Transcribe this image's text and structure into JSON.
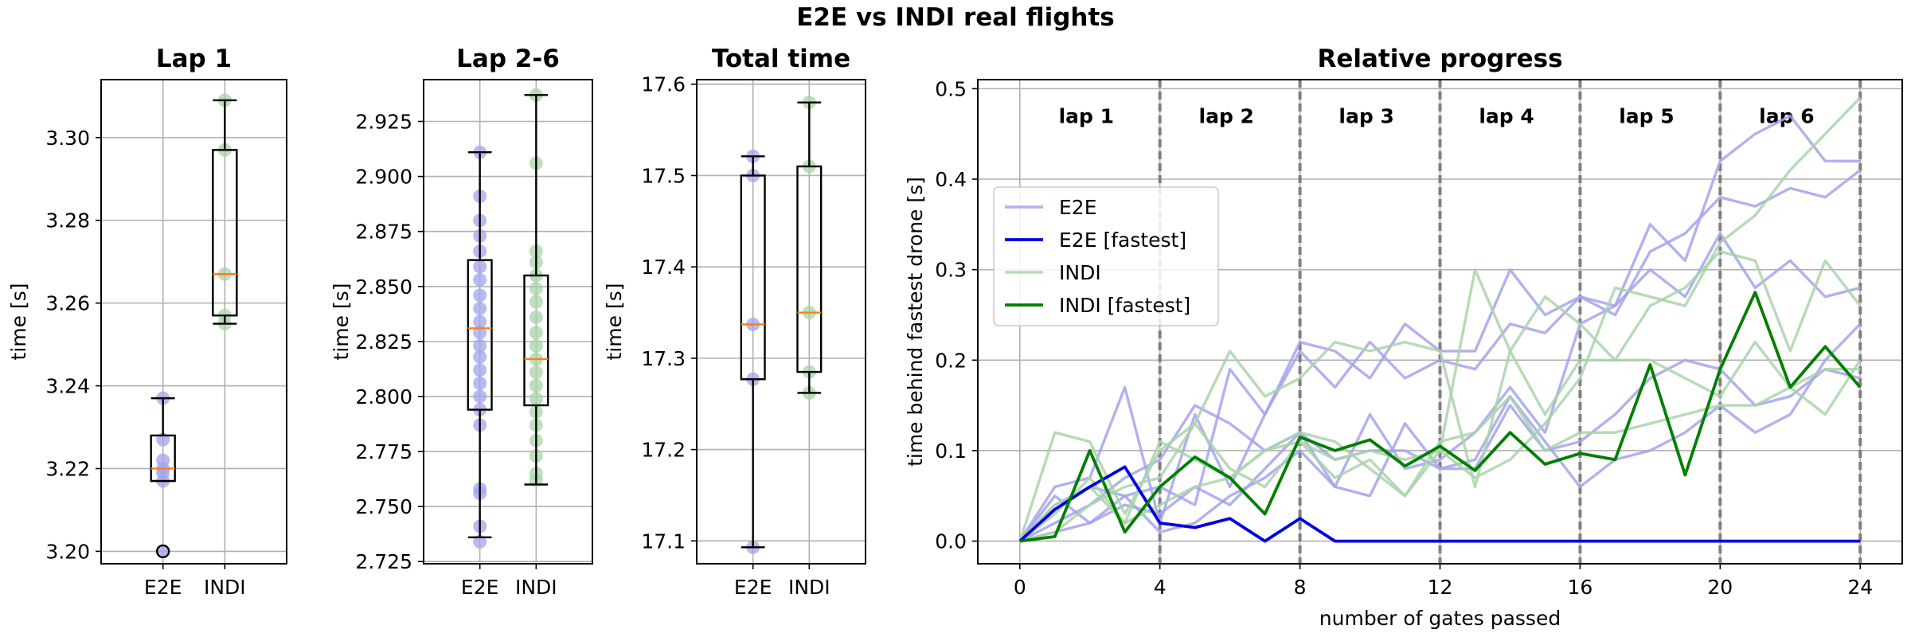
{
  "figure_title": "E2E vs INDI real flights",
  "colors": {
    "e2e_light": "#a3a3ee",
    "e2e_dark": "#0000dd",
    "indi_light": "#a9d3a9",
    "indi_dark": "#007f00",
    "median": "#ff7f0e",
    "grid": "#b0b0b0",
    "lap_line": "#808080"
  },
  "chart_data": [
    {
      "type": "box",
      "title": "Lap 1",
      "ylabel": "time [s]",
      "xlabel": "",
      "categories": [
        "E2E",
        "INDI"
      ],
      "ylim": [
        3.197,
        3.314
      ],
      "yticks": [
        3.2,
        3.22,
        3.24,
        3.26,
        3.28,
        3.3
      ],
      "tick_decimals": 2,
      "boxes": [
        {
          "name": "E2E",
          "whislo": 3.217,
          "q1": 3.217,
          "med": 3.22,
          "q3": 3.228,
          "whishi": 3.237,
          "fliers": [
            3.2
          ],
          "points": [
            3.237,
            3.227,
            3.222,
            3.22,
            3.219,
            3.217,
            3.2
          ]
        },
        {
          "name": "INDI",
          "whislo": 3.255,
          "q1": 3.257,
          "med": 3.267,
          "q3": 3.297,
          "whishi": 3.309,
          "fliers": [],
          "points": [
            3.309,
            3.297,
            3.267,
            3.257,
            3.255
          ]
        }
      ]
    },
    {
      "type": "box",
      "title": "Lap 2-6",
      "ylabel": "time [s]",
      "xlabel": "",
      "categories": [
        "E2E",
        "INDI"
      ],
      "ylim": [
        2.724,
        2.944
      ],
      "yticks": [
        2.725,
        2.75,
        2.775,
        2.8,
        2.825,
        2.85,
        2.875,
        2.9,
        2.925
      ],
      "tick_decimals": 3,
      "boxes": [
        {
          "name": "E2E",
          "whislo": 2.736,
          "q1": 2.794,
          "med": 2.831,
          "q3": 2.862,
          "whishi": 2.911,
          "fliers": [],
          "points": [
            2.911,
            2.891,
            2.88,
            2.873,
            2.866,
            2.859,
            2.853,
            2.846,
            2.84,
            2.834,
            2.829,
            2.823,
            2.818,
            2.812,
            2.806,
            2.8,
            2.794,
            2.787,
            2.758,
            2.756,
            2.741,
            2.734
          ]
        },
        {
          "name": "INDI",
          "whislo": 2.76,
          "q1": 2.796,
          "med": 2.817,
          "q3": 2.855,
          "whishi": 2.937,
          "fliers": [],
          "points": [
            2.937,
            2.906,
            2.866,
            2.861,
            2.855,
            2.849,
            2.843,
            2.836,
            2.829,
            2.823,
            2.817,
            2.811,
            2.805,
            2.799,
            2.793,
            2.787,
            2.78,
            2.773,
            2.765,
            2.762
          ]
        }
      ]
    },
    {
      "type": "box",
      "title": "Total time",
      "ylabel": "time [s]",
      "xlabel": "",
      "categories": [
        "E2E",
        "INDI"
      ],
      "ylim": [
        17.075,
        17.605
      ],
      "yticks": [
        17.1,
        17.2,
        17.3,
        17.4,
        17.5,
        17.6
      ],
      "tick_decimals": 1,
      "boxes": [
        {
          "name": "E2E",
          "whislo": 17.093,
          "q1": 17.277,
          "med": 17.337,
          "q3": 17.5,
          "whishi": 17.521,
          "fliers": [],
          "points": [
            17.521,
            17.5,
            17.337,
            17.277,
            17.093
          ]
        },
        {
          "name": "INDI",
          "whislo": 17.262,
          "q1": 17.285,
          "med": 17.35,
          "q3": 17.51,
          "whishi": 17.58,
          "fliers": [],
          "points": [
            17.58,
            17.51,
            17.35,
            17.285,
            17.262
          ]
        }
      ]
    },
    {
      "type": "line",
      "title": "Relative progress",
      "xlabel": "number of gates passed",
      "ylabel": "time behind fastest drone [s]",
      "xlim": [
        -1.2,
        25.2
      ],
      "ylim": [
        -0.025,
        0.51
      ],
      "xticks": [
        0,
        4,
        8,
        12,
        16,
        20,
        24
      ],
      "yticks": [
        0.0,
        0.1,
        0.2,
        0.3,
        0.4,
        0.5
      ],
      "tick_decimals": 1,
      "lap_boundaries": [
        4,
        8,
        12,
        16,
        20,
        24
      ],
      "lap_labels": [
        {
          "text": "lap 1",
          "x": 1.9
        },
        {
          "text": "lap 2",
          "x": 5.9
        },
        {
          "text": "lap 3",
          "x": 9.9
        },
        {
          "text": "lap 4",
          "x": 13.9
        },
        {
          "text": "lap 5",
          "x": 17.9
        },
        {
          "text": "lap 6",
          "x": 21.9
        }
      ],
      "lap_label_y": 0.47,
      "legend": {
        "position": "center-left",
        "entries": [
          {
            "label": "E2E",
            "style": "e2e_light"
          },
          {
            "label": "E2E [fastest]",
            "style": "e2e_dark"
          },
          {
            "label": "INDI",
            "style": "indi_light"
          },
          {
            "label": "INDI [fastest]",
            "style": "indi_dark"
          }
        ]
      },
      "series": [
        {
          "name": "E2E",
          "style": "e2e_light",
          "values": [
            0,
            0.06,
            0.07,
            0.17,
            0.02,
            0.14,
            0.06,
            0.14,
            0.22,
            0.21,
            0.18,
            0.24,
            0.21,
            0.21,
            0.3,
            0.25,
            0.27,
            0.26,
            0.35,
            0.31,
            0.42,
            0.45,
            0.47,
            0.42,
            0.42
          ]
        },
        {
          "name": "E2E",
          "style": "e2e_light",
          "values": [
            0,
            0.04,
            0.06,
            0.05,
            0.06,
            0.04,
            0.19,
            0.14,
            0.21,
            0.17,
            0.22,
            0.18,
            0.2,
            0.19,
            0.24,
            0.23,
            0.27,
            0.25,
            0.32,
            0.34,
            0.38,
            0.37,
            0.39,
            0.38,
            0.41
          ]
        },
        {
          "name": "E2E",
          "style": "e2e_light",
          "values": [
            0,
            0.02,
            0.04,
            0.07,
            0.09,
            0.15,
            0.13,
            0.1,
            0.12,
            0.06,
            0.14,
            0.08,
            0.09,
            0.12,
            0.17,
            0.12,
            0.24,
            0.26,
            0.3,
            0.27,
            0.34,
            0.28,
            0.31,
            0.27,
            0.28
          ]
        },
        {
          "name": "E2E",
          "style": "e2e_light",
          "values": [
            0,
            0.01,
            0.02,
            0.04,
            0.03,
            0.06,
            0.04,
            0.08,
            0.12,
            0.09,
            0.1,
            0.1,
            0.08,
            0.09,
            0.16,
            0.11,
            0.06,
            0.09,
            0.1,
            0.12,
            0.15,
            0.12,
            0.14,
            0.2,
            0.24
          ]
        },
        {
          "name": "E2E",
          "style": "e2e_light",
          "values": [
            0,
            0.05,
            0.02,
            0.05,
            0.01,
            0.02,
            0.05,
            0.07,
            0.1,
            0.06,
            0.05,
            0.13,
            0.08,
            0.08,
            0.15,
            0.1,
            0.11,
            0.14,
            0.18,
            0.2,
            0.19,
            0.15,
            0.16,
            0.19,
            0.18
          ]
        },
        {
          "name": "INDI",
          "style": "indi_light",
          "values": [
            0,
            0.12,
            0.11,
            0.03,
            0.1,
            0.13,
            0.08,
            0.06,
            0.11,
            0.09,
            0.1,
            0.09,
            0.1,
            0.07,
            0.09,
            0.13,
            0.18,
            0.28,
            0.27,
            0.26,
            0.33,
            0.36,
            0.41,
            0.45,
            0.49
          ]
        },
        {
          "name": "INDI",
          "style": "indi_light",
          "values": [
            0,
            0.04,
            0.06,
            0.02,
            0.11,
            0.09,
            0.07,
            0.1,
            0.11,
            0.07,
            0.09,
            0.05,
            0.1,
            0.3,
            0.21,
            0.27,
            0.24,
            0.2,
            0.26,
            0.28,
            0.32,
            0.31,
            0.21,
            0.31,
            0.26
          ]
        },
        {
          "name": "INDI",
          "style": "indi_light",
          "values": [
            0,
            0.01,
            0.04,
            0.06,
            0.07,
            0.13,
            0.21,
            0.16,
            0.18,
            0.22,
            0.21,
            0.22,
            0.21,
            0.06,
            0.21,
            0.14,
            0.2,
            0.2,
            0.2,
            0.18,
            0.16,
            0.22,
            0.17,
            0.14,
            0.2
          ]
        },
        {
          "name": "INDI",
          "style": "indi_light",
          "values": [
            0,
            0.03,
            0.07,
            0.02,
            0.04,
            0.06,
            0.07,
            0.1,
            0.12,
            0.11,
            0.08,
            0.05,
            0.11,
            0.12,
            0.16,
            0.1,
            0.12,
            0.12,
            0.13,
            0.14,
            0.15,
            0.15,
            0.17,
            0.19,
            0.19
          ]
        },
        {
          "name": "E2E [fastest]",
          "style": "e2e_dark",
          "values": [
            0,
            0.035,
            0.06,
            0.082,
            0.02,
            0.015,
            0.025,
            0.0,
            0.025,
            0,
            0,
            0,
            0,
            0,
            0,
            0,
            0,
            0,
            0,
            0,
            0,
            0,
            0,
            0,
            0
          ]
        },
        {
          "name": "INDI [fastest]",
          "style": "indi_dark",
          "values": [
            0,
            0.005,
            0.1,
            0.01,
            0.06,
            0.093,
            0.07,
            0.03,
            0.115,
            0.1,
            0.112,
            0.083,
            0.105,
            0.078,
            0.12,
            0.085,
            0.097,
            0.09,
            0.195,
            0.073,
            0.19,
            0.275,
            0.17,
            0.215,
            0.17
          ]
        }
      ]
    }
  ]
}
